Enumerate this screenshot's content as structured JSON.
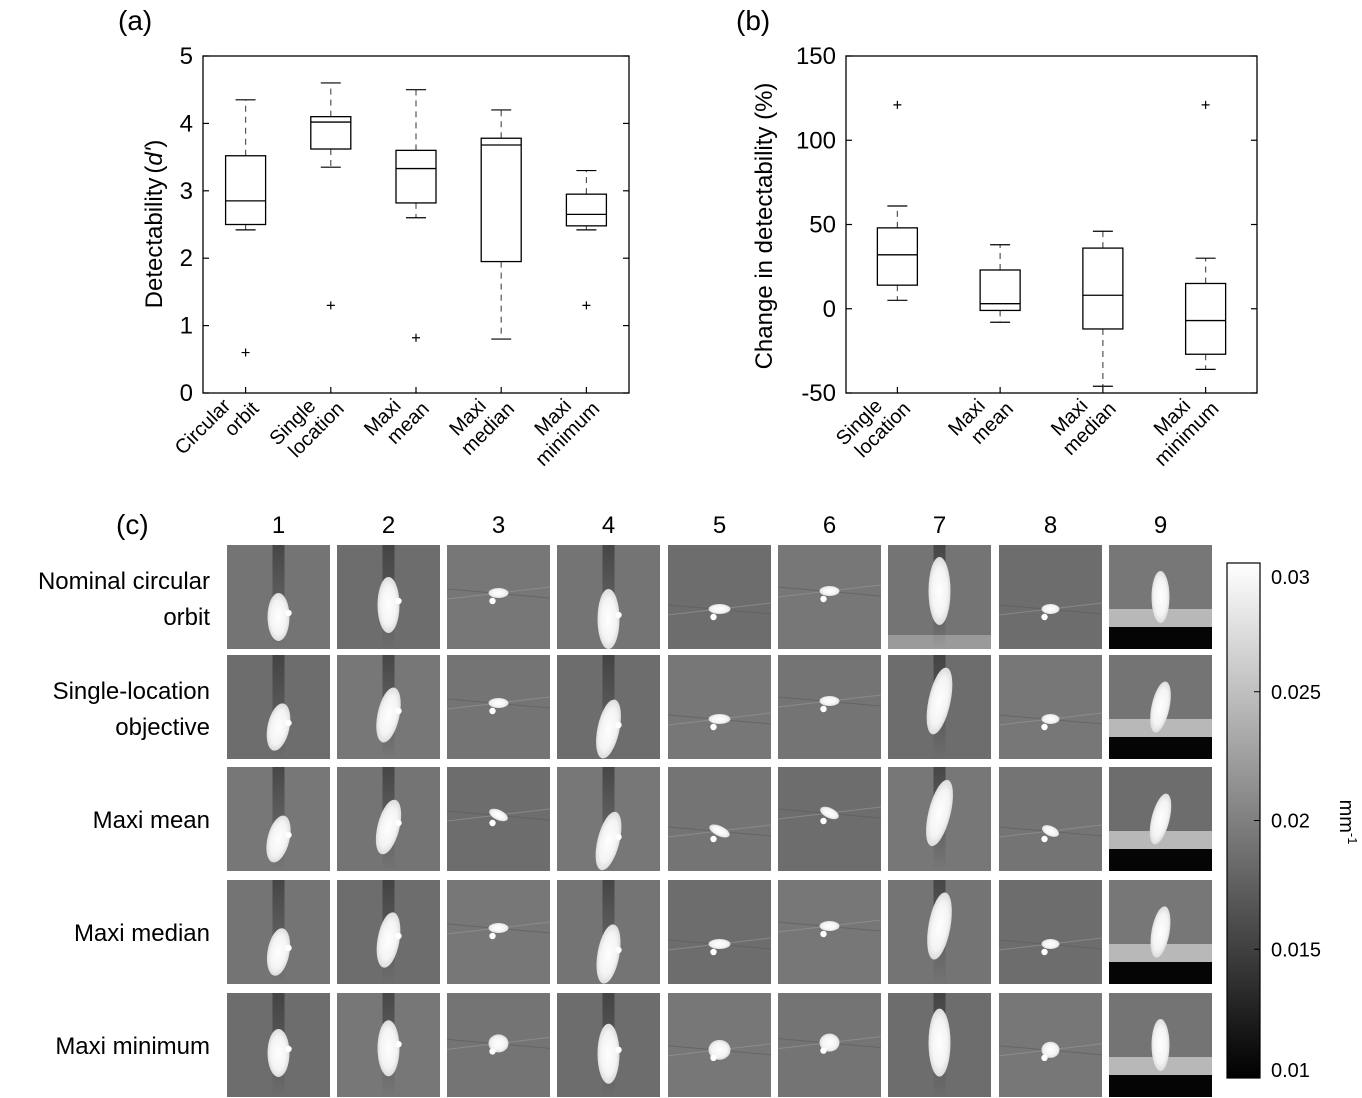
{
  "panel_labels": {
    "a": "(a)",
    "b": "(b)",
    "c": "(c)"
  },
  "colors": {
    "axis": "#000000",
    "box": "#000000",
    "whisker": "#555555",
    "image_bg": "#6e6e6e"
  },
  "chart_data": [
    {
      "type": "box",
      "panel": "(a)",
      "title": "",
      "ylabel": "Detectability (d')",
      "ylabel_text": "Detectability",
      "ylabel_symbol": "d'",
      "ylim": [
        0,
        5
      ],
      "yticks": [
        0,
        1,
        2,
        3,
        4,
        5
      ],
      "categories": [
        [
          "Circular",
          "orbit"
        ],
        [
          "Single",
          "location"
        ],
        [
          "Maxi",
          "mean"
        ],
        [
          "Maxi",
          "median"
        ],
        [
          "Maxi",
          "minimum"
        ]
      ],
      "boxes": [
        {
          "whisker_low": 2.42,
          "q1": 2.5,
          "median": 2.85,
          "q3": 3.52,
          "whisker_high": 4.35,
          "outliers": [
            0.6
          ]
        },
        {
          "whisker_low": 3.35,
          "q1": 3.62,
          "median": 4.02,
          "q3": 4.1,
          "whisker_high": 4.6,
          "outliers": [
            1.3
          ]
        },
        {
          "whisker_low": 2.6,
          "q1": 2.82,
          "median": 3.33,
          "q3": 3.6,
          "whisker_high": 4.5,
          "outliers": [
            0.82
          ]
        },
        {
          "whisker_low": 0.8,
          "q1": 1.95,
          "median": 3.68,
          "q3": 3.78,
          "whisker_high": 4.2,
          "outliers": []
        },
        {
          "whisker_low": 2.42,
          "q1": 2.48,
          "median": 2.65,
          "q3": 2.95,
          "whisker_high": 3.3,
          "outliers": [
            1.3
          ]
        }
      ],
      "grid": false
    },
    {
      "type": "box",
      "panel": "(b)",
      "title": "",
      "ylabel": "Change in detectability (%)",
      "ylim": [
        -50,
        150
      ],
      "yticks": [
        -50,
        0,
        50,
        100,
        150
      ],
      "categories": [
        [
          "Single",
          "location"
        ],
        [
          "Maxi",
          "mean"
        ],
        [
          "Maxi",
          "median"
        ],
        [
          "Maxi",
          "minimum"
        ]
      ],
      "boxes": [
        {
          "whisker_low": 5,
          "q1": 14,
          "median": 32,
          "q3": 48,
          "whisker_high": 61,
          "outliers": [
            121
          ]
        },
        {
          "whisker_low": -8,
          "q1": -1,
          "median": 3,
          "q3": 23,
          "whisker_high": 38,
          "outliers": []
        },
        {
          "whisker_low": -46,
          "q1": -12,
          "median": 8,
          "q3": 36,
          "whisker_high": 46,
          "outliers": []
        },
        {
          "whisker_low": -36,
          "q1": -27,
          "median": -7,
          "q3": 15,
          "whisker_high": 30,
          "outliers": [
            121
          ]
        }
      ],
      "grid": false
    },
    {
      "type": "heatmap",
      "panel": "(c)",
      "columns": [
        "1",
        "2",
        "3",
        "4",
        "5",
        "6",
        "7",
        "8",
        "9"
      ],
      "rows": [
        [
          "Nominal circular",
          "orbit"
        ],
        [
          "Single-location",
          "objective"
        ],
        [
          "Maxi mean"
        ],
        [
          "Maxi median"
        ],
        [
          "Maxi minimum"
        ]
      ],
      "colorbar": {
        "colormap": "gray",
        "range": [
          0.01,
          0.03
        ],
        "ticks": [
          "0.03",
          "0.025",
          "0.02",
          "0.015",
          "0.01"
        ],
        "tick_values": [
          0.03,
          0.025,
          0.02,
          0.015,
          0.01
        ],
        "label": "mm",
        "label_sup": "-1"
      }
    }
  ]
}
